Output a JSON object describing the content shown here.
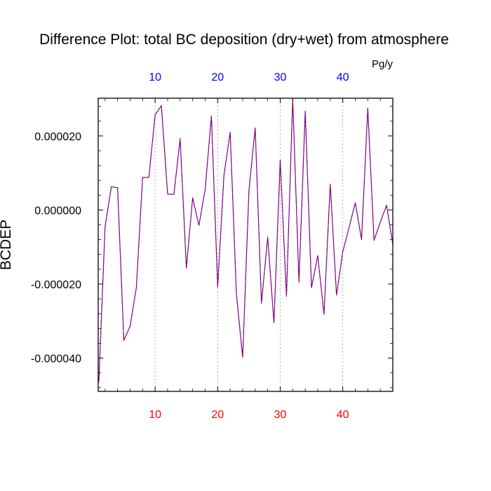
{
  "chart_data": {
    "type": "line",
    "title": "Difference Plot: total BC deposition (dry+wet) from atmosphere",
    "units": "Pg/y",
    "ylabel": "BCDEP",
    "xlabel": "",
    "xlim": [
      0.9,
      48
    ],
    "ylim": [
      -4.9e-05,
      3.02e-05
    ],
    "x_ticks": [
      10,
      20,
      30,
      40
    ],
    "x_tick_labels": [
      "10",
      "20",
      "30",
      "40"
    ],
    "y_ticks": [
      -4e-05,
      -2e-05,
      0,
      2e-05
    ],
    "y_tick_labels": [
      "-0.000040",
      "-0.000020",
      "0.000000",
      "0.000020"
    ],
    "bottom_tick_color": "#ff0000",
    "top_tick_color": "#0000ff",
    "line_colors": [
      "#0000ff",
      "#ff0000"
    ],
    "line_style": "dashed",
    "grid": "vertical dotted at major x ticks",
    "series": [
      {
        "x": [
          1,
          2,
          3,
          4,
          5,
          6,
          7,
          8,
          9,
          10,
          11,
          12,
          13,
          14,
          15,
          16,
          17,
          18,
          19,
          20,
          21,
          22,
          23,
          24,
          25,
          26,
          27,
          28,
          29,
          30,
          31,
          32,
          33,
          34,
          35,
          36,
          37,
          38,
          39,
          40,
          41,
          42,
          43,
          44,
          45,
          46,
          47,
          48
        ],
        "values": [
          -4.65e-05,
          -4.5e-06,
          6.3e-06,
          6e-06,
          -3.52e-05,
          -3.14e-05,
          -2.1e-05,
          8.8e-06,
          8.8e-06,
          2.57e-05,
          2.82e-05,
          4.3e-06,
          4.2e-06,
          1.93e-05,
          -1.57e-05,
          3.3e-06,
          -4.2e-06,
          5.5e-06,
          2.54e-05,
          -2.08e-05,
          9.3e-06,
          2.1e-05,
          -2.28e-05,
          -3.98e-05,
          5.2e-06,
          2.22e-05,
          -2.52e-05,
          -7.3e-06,
          -3.05e-05,
          1.35e-05,
          -2.33e-05,
          3e-05,
          -1.95e-05,
          2.67e-05,
          -2.1e-05,
          -1.23e-05,
          -2.82e-05,
          7e-06,
          -2.3e-05,
          -1.13e-05,
          -4.8e-06,
          2e-06,
          -8e-06,
          2.75e-05,
          -8.2e-06,
          -3.3e-06,
          1.3e-06,
          -9.3e-06
        ]
      }
    ]
  }
}
